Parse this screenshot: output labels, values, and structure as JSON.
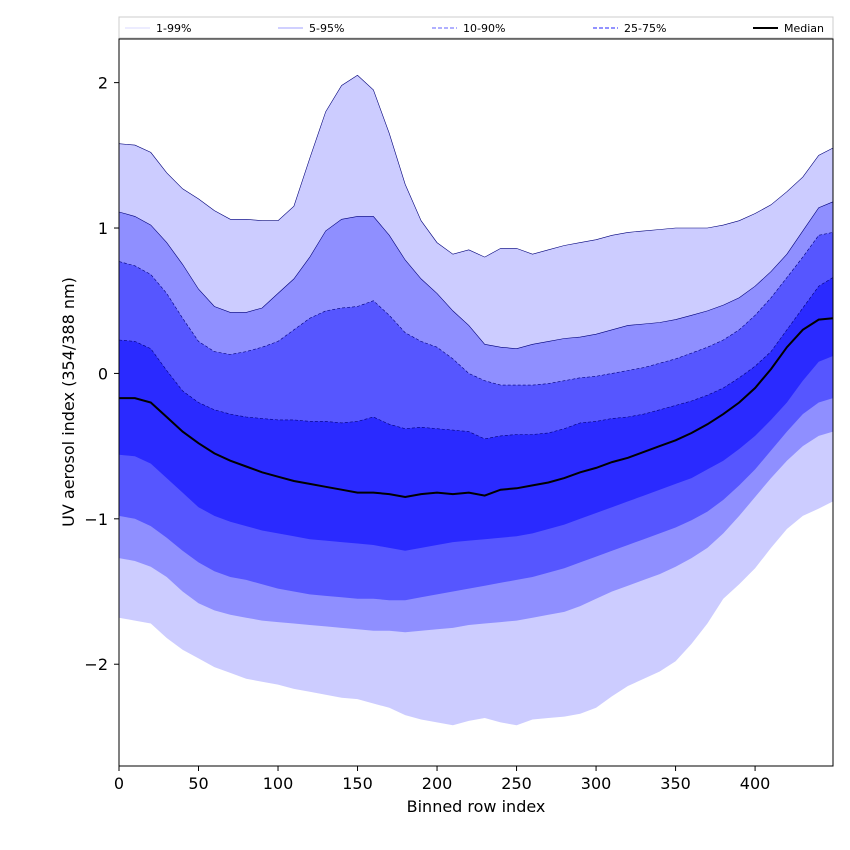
{
  "chart_data": {
    "type": "area",
    "title": "",
    "xlabel": "Binned row index",
    "ylabel": "UV aerosol index (354/388 nm)",
    "xlim": [
      0,
      449
    ],
    "ylim": [
      -2.7,
      2.3
    ],
    "xticks": [
      0,
      50,
      100,
      150,
      200,
      250,
      300,
      350,
      400
    ],
    "yticks": [
      -2,
      -1,
      0,
      1,
      2
    ],
    "ytick_labels": [
      "−2",
      "−1",
      "0",
      "1",
      "2"
    ],
    "legend_position": "top",
    "legend": [
      {
        "label": "1-99%",
        "style": "thin",
        "color": "#ccccff"
      },
      {
        "label": "5-95%",
        "style": "thin",
        "color": "#8080ff"
      },
      {
        "label": "10-90%",
        "style": "dashed",
        "color": "#8080ff"
      },
      {
        "label": "25-75%",
        "style": "dashed",
        "color": "#5050ff"
      },
      {
        "label": "Median",
        "style": "solid",
        "color": "#000000"
      }
    ],
    "x": [
      0,
      10,
      20,
      30,
      40,
      50,
      60,
      70,
      80,
      90,
      100,
      110,
      120,
      130,
      140,
      150,
      160,
      170,
      180,
      190,
      200,
      210,
      220,
      230,
      240,
      250,
      260,
      270,
      280,
      290,
      300,
      310,
      320,
      330,
      340,
      350,
      360,
      370,
      380,
      390,
      400,
      410,
      420,
      430,
      440,
      449
    ],
    "bands": [
      {
        "name": "1-99%",
        "fill": "#ccccff",
        "lower": [
          -1.68,
          -1.7,
          -1.72,
          -1.82,
          -1.9,
          -1.96,
          -2.02,
          -2.06,
          -2.1,
          -2.12,
          -2.14,
          -2.17,
          -2.19,
          -2.21,
          -2.23,
          -2.24,
          -2.27,
          -2.3,
          -2.35,
          -2.38,
          -2.4,
          -2.42,
          -2.39,
          -2.37,
          -2.4,
          -2.42,
          -2.38,
          -2.37,
          -2.36,
          -2.34,
          -2.3,
          -2.22,
          -2.15,
          -2.1,
          -2.05,
          -1.98,
          -1.86,
          -1.72,
          -1.55,
          -1.45,
          -1.34,
          -1.2,
          -1.07,
          -0.98,
          -0.93,
          -0.88
        ],
        "upper": [
          1.58,
          1.57,
          1.52,
          1.38,
          1.27,
          1.2,
          1.12,
          1.06,
          1.06,
          1.05,
          1.05,
          1.15,
          1.48,
          1.8,
          1.98,
          2.05,
          1.95,
          1.65,
          1.3,
          1.05,
          0.9,
          0.82,
          0.85,
          0.8,
          0.86,
          0.86,
          0.82,
          0.85,
          0.88,
          0.9,
          0.92,
          0.95,
          0.97,
          0.98,
          0.99,
          1.0,
          1.0,
          1.0,
          1.02,
          1.05,
          1.1,
          1.16,
          1.25,
          1.35,
          1.5,
          1.55
        ]
      },
      {
        "name": "5-95%",
        "fill": "#8f8fff",
        "lower": [
          -1.27,
          -1.29,
          -1.33,
          -1.4,
          -1.5,
          -1.58,
          -1.63,
          -1.66,
          -1.68,
          -1.7,
          -1.71,
          -1.72,
          -1.73,
          -1.74,
          -1.75,
          -1.76,
          -1.77,
          -1.77,
          -1.78,
          -1.77,
          -1.76,
          -1.75,
          -1.73,
          -1.72,
          -1.71,
          -1.7,
          -1.68,
          -1.66,
          -1.64,
          -1.6,
          -1.55,
          -1.5,
          -1.46,
          -1.42,
          -1.38,
          -1.33,
          -1.27,
          -1.2,
          -1.1,
          -0.98,
          -0.85,
          -0.72,
          -0.6,
          -0.5,
          -0.43,
          -0.4
        ],
        "upper": [
          1.11,
          1.08,
          1.02,
          0.9,
          0.75,
          0.58,
          0.46,
          0.42,
          0.42,
          0.45,
          0.55,
          0.65,
          0.8,
          0.98,
          1.06,
          1.08,
          1.08,
          0.95,
          0.78,
          0.65,
          0.55,
          0.43,
          0.33,
          0.2,
          0.18,
          0.17,
          0.2,
          0.22,
          0.24,
          0.25,
          0.27,
          0.3,
          0.33,
          0.34,
          0.35,
          0.37,
          0.4,
          0.43,
          0.47,
          0.52,
          0.6,
          0.7,
          0.82,
          0.98,
          1.14,
          1.18
        ]
      },
      {
        "name": "10-90%",
        "fill": "#5656ff",
        "lower": [
          -0.98,
          -1.0,
          -1.05,
          -1.13,
          -1.22,
          -1.3,
          -1.36,
          -1.4,
          -1.42,
          -1.45,
          -1.48,
          -1.5,
          -1.52,
          -1.53,
          -1.54,
          -1.55,
          -1.55,
          -1.56,
          -1.56,
          -1.54,
          -1.52,
          -1.5,
          -1.48,
          -1.46,
          -1.44,
          -1.42,
          -1.4,
          -1.37,
          -1.34,
          -1.3,
          -1.26,
          -1.22,
          -1.18,
          -1.14,
          -1.1,
          -1.06,
          -1.01,
          -0.95,
          -0.87,
          -0.77,
          -0.66,
          -0.53,
          -0.4,
          -0.28,
          -0.2,
          -0.17
        ],
        "upper": [
          0.77,
          0.74,
          0.68,
          0.55,
          0.38,
          0.22,
          0.15,
          0.13,
          0.15,
          0.18,
          0.22,
          0.3,
          0.38,
          0.43,
          0.45,
          0.46,
          0.5,
          0.4,
          0.28,
          0.22,
          0.18,
          0.1,
          0.0,
          -0.05,
          -0.08,
          -0.08,
          -0.08,
          -0.07,
          -0.05,
          -0.03,
          -0.02,
          0.0,
          0.02,
          0.04,
          0.07,
          0.1,
          0.14,
          0.18,
          0.23,
          0.3,
          0.4,
          0.52,
          0.66,
          0.8,
          0.95,
          0.97
        ]
      },
      {
        "name": "25-75%",
        "fill": "#2a2aff",
        "lower": [
          -0.56,
          -0.57,
          -0.62,
          -0.72,
          -0.82,
          -0.92,
          -0.98,
          -1.02,
          -1.05,
          -1.08,
          -1.1,
          -1.12,
          -1.14,
          -1.15,
          -1.16,
          -1.17,
          -1.18,
          -1.2,
          -1.22,
          -1.2,
          -1.18,
          -1.16,
          -1.15,
          -1.14,
          -1.13,
          -1.12,
          -1.1,
          -1.07,
          -1.04,
          -1.0,
          -0.96,
          -0.92,
          -0.88,
          -0.84,
          -0.8,
          -0.76,
          -0.72,
          -0.66,
          -0.6,
          -0.52,
          -0.43,
          -0.32,
          -0.2,
          -0.05,
          0.08,
          0.12
        ],
        "upper": [
          0.23,
          0.22,
          0.17,
          0.02,
          -0.12,
          -0.2,
          -0.25,
          -0.28,
          -0.3,
          -0.31,
          -0.32,
          -0.32,
          -0.33,
          -0.33,
          -0.34,
          -0.33,
          -0.3,
          -0.35,
          -0.38,
          -0.37,
          -0.38,
          -0.39,
          -0.4,
          -0.45,
          -0.43,
          -0.42,
          -0.42,
          -0.41,
          -0.38,
          -0.34,
          -0.33,
          -0.31,
          -0.3,
          -0.28,
          -0.25,
          -0.22,
          -0.19,
          -0.15,
          -0.1,
          -0.03,
          0.05,
          0.15,
          0.3,
          0.45,
          0.6,
          0.66
        ]
      }
    ],
    "median": {
      "name": "Median",
      "values": [
        -0.17,
        -0.17,
        -0.2,
        -0.3,
        -0.4,
        -0.48,
        -0.55,
        -0.6,
        -0.64,
        -0.68,
        -0.71,
        -0.74,
        -0.76,
        -0.78,
        -0.8,
        -0.82,
        -0.82,
        -0.83,
        -0.85,
        -0.83,
        -0.82,
        -0.83,
        -0.82,
        -0.84,
        -0.8,
        -0.79,
        -0.77,
        -0.75,
        -0.72,
        -0.68,
        -0.65,
        -0.61,
        -0.58,
        -0.54,
        -0.5,
        -0.46,
        -0.41,
        -0.35,
        -0.28,
        -0.2,
        -0.1,
        0.03,
        0.18,
        0.3,
        0.37,
        0.38
      ]
    }
  }
}
